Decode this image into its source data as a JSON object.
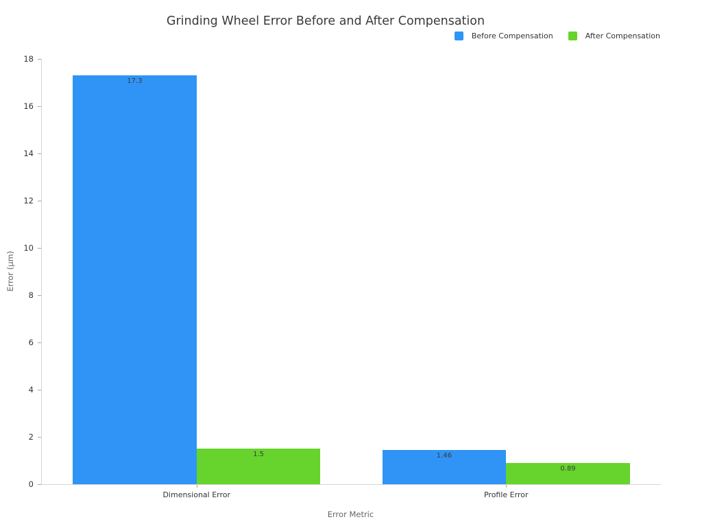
{
  "chart_data": {
    "type": "bar",
    "title": "Grinding Wheel Error Before and After Compensation",
    "xlabel": "Error Metric",
    "ylabel": "Error (μm)",
    "categories": [
      "Dimensional Error",
      "Profile Error"
    ],
    "series": [
      {
        "name": "Before Compensation",
        "color": "#2F94F5",
        "values": [
          17.3,
          1.46
        ]
      },
      {
        "name": "After Compensation",
        "color": "#66D42C",
        "values": [
          1.5,
          0.89
        ]
      }
    ],
    "ylim": [
      0,
      18
    ],
    "yticks": [
      0,
      2,
      4,
      6,
      8,
      10,
      12,
      14,
      16,
      18
    ],
    "grid": false,
    "legend_position": "top-right",
    "value_labels": "inside-top-centered",
    "spines": [
      "left",
      "bottom"
    ]
  }
}
